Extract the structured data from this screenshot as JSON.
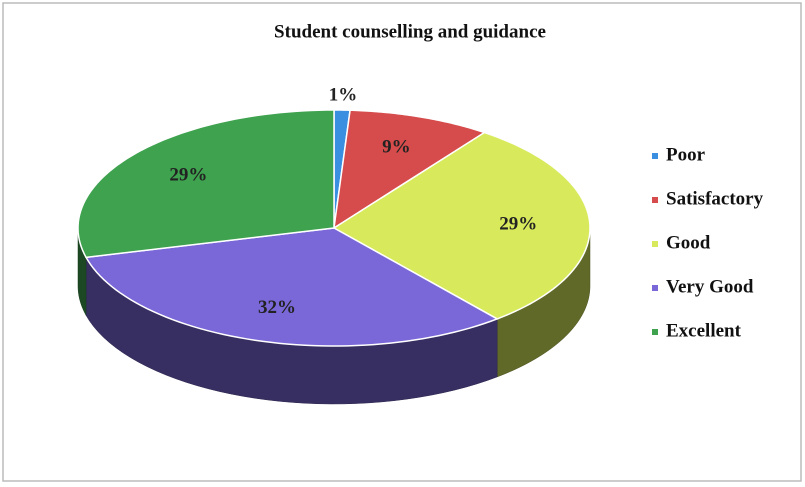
{
  "chart_data": {
    "type": "pie",
    "title": "Student counselling and guidance",
    "categories": [
      "Poor",
      "Satisfactory",
      "Good",
      "Very Good",
      "Excellent"
    ],
    "values": [
      1,
      9,
      29,
      32,
      29
    ],
    "value_labels": [
      "1%",
      "9%",
      "29%",
      "32%",
      "29%"
    ],
    "colors": [
      "#3b8fe0",
      "#d64b4b",
      "#d8ea5c",
      "#7a68d8",
      "#3ea24e"
    ],
    "legend": "right"
  }
}
